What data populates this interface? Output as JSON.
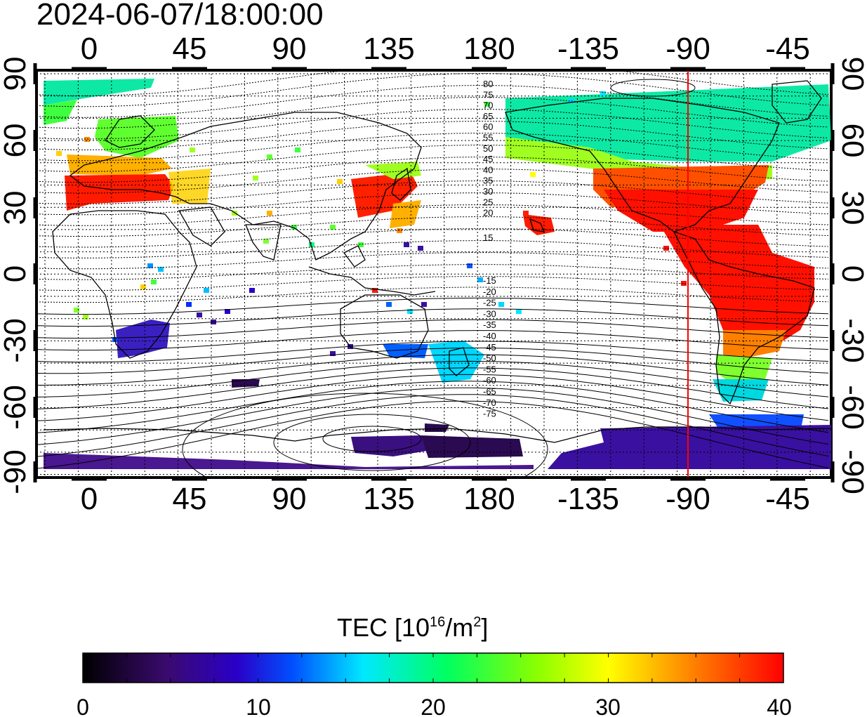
{
  "timestamp": "2024-06-07/18:00:00",
  "map": {
    "top_ticks": [
      "0",
      "45",
      "90",
      "135",
      "180",
      "-135",
      "-90",
      "-45"
    ],
    "bottom_ticks": [
      "0",
      "45",
      "90",
      "135",
      "180",
      "-135",
      "-90",
      "-45"
    ],
    "left_ticks": [
      "90",
      "60",
      "30",
      "0",
      "-30",
      "-60",
      "-90"
    ],
    "right_ticks": [
      "90",
      "60",
      "30",
      "0",
      "-30",
      "-60",
      "-90"
    ],
    "contour_labels_north": [
      "80",
      "75",
      "70",
      "65",
      "60",
      "55",
      "50",
      "45",
      "40",
      "35",
      "30",
      "25",
      "20",
      "15"
    ],
    "contour_labels_south": [
      "-15",
      "-20",
      "-25",
      "-30",
      "-35",
      "-40",
      "-45",
      "-50",
      "-55",
      "-60",
      "-65",
      "-70",
      "-75"
    ],
    "meridian_line_color": "#ff0000",
    "land_outline_color": "#000000",
    "grid_style": "dotted"
  },
  "colorbar": {
    "title_prefix": "TEC  [10",
    "title_exp1": "16",
    "title_mid": "/m",
    "title_exp2": "2",
    "title_suffix": "]",
    "ticks": [
      "0",
      "10",
      "20",
      "30",
      "40"
    ],
    "range": [
      0,
      40
    ],
    "colors": [
      "#000000",
      "#3a0a6e",
      "#2a00c8",
      "#0050ff",
      "#00e8ff",
      "#00ff60",
      "#8cff00",
      "#ffff00",
      "#ff8c00",
      "#ff0000"
    ]
  }
}
